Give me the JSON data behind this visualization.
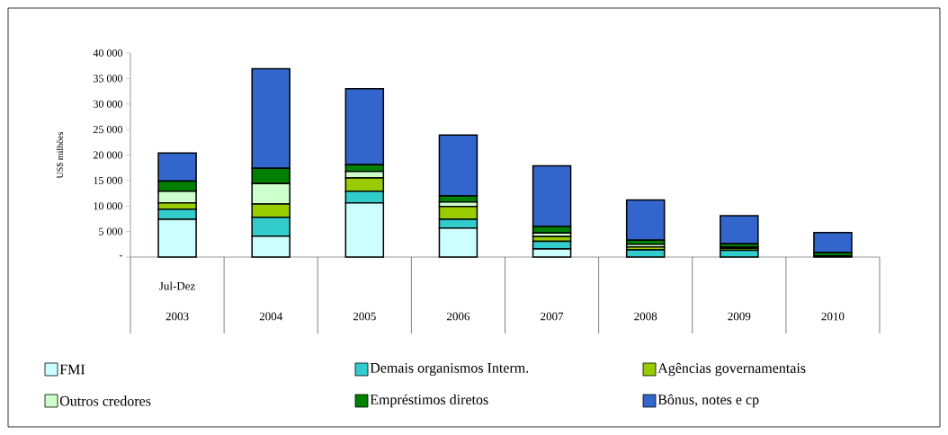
{
  "chart_data": {
    "type": "bar",
    "stacked": true,
    "ylabel": "US$ milhões",
    "categories": [
      "2003",
      "2004",
      "2005",
      "2006",
      "2007",
      "2008",
      "2009",
      "2010"
    ],
    "annotations": [
      "Jul-Dez"
    ],
    "series": [
      {
        "name": "FMI",
        "color": "#ccffff",
        "values": [
          7400,
          4100,
          10600,
          5700,
          1600,
          0,
          0,
          0
        ]
      },
      {
        "name": "Demais organismos Interm.",
        "color": "#33cccc",
        "values": [
          2000,
          3700,
          2300,
          1700,
          1500,
          1400,
          1300,
          200
        ]
      },
      {
        "name": "Agências governamentais",
        "color": "#99cc00",
        "values": [
          1200,
          2600,
          2600,
          2500,
          900,
          600,
          400,
          null
        ]
      },
      {
        "name": "Outros credores",
        "color": "#ccffcc",
        "values": [
          2300,
          4000,
          1300,
          900,
          700,
          500,
          300,
          null
        ]
      },
      {
        "name": "Empréstimos diretos",
        "color": "#008000",
        "values": [
          2000,
          3000,
          1300,
          1200,
          1300,
          800,
          600,
          700
        ]
      },
      {
        "name": "Bônus, notes e cp",
        "color": "#3366cc",
        "values": [
          5500,
          19500,
          14900,
          11900,
          11900,
          7900,
          5500,
          3900
        ]
      }
    ],
    "ylim": [
      0,
      40000
    ],
    "yticks": [
      {
        "value": 0,
        "label": "-"
      },
      {
        "value": 5000,
        "label": "5 000"
      },
      {
        "value": 10000,
        "label": "10 000"
      },
      {
        "value": 15000,
        "label": "15 000"
      },
      {
        "value": 20000,
        "label": "20 000"
      },
      {
        "value": 25000,
        "label": "25 000"
      },
      {
        "value": 30000,
        "label": "30 000"
      },
      {
        "value": 35000,
        "label": "35 000"
      },
      {
        "value": 40000,
        "label": "40 000"
      }
    ],
    "grid": false,
    "legend": "bottom"
  }
}
